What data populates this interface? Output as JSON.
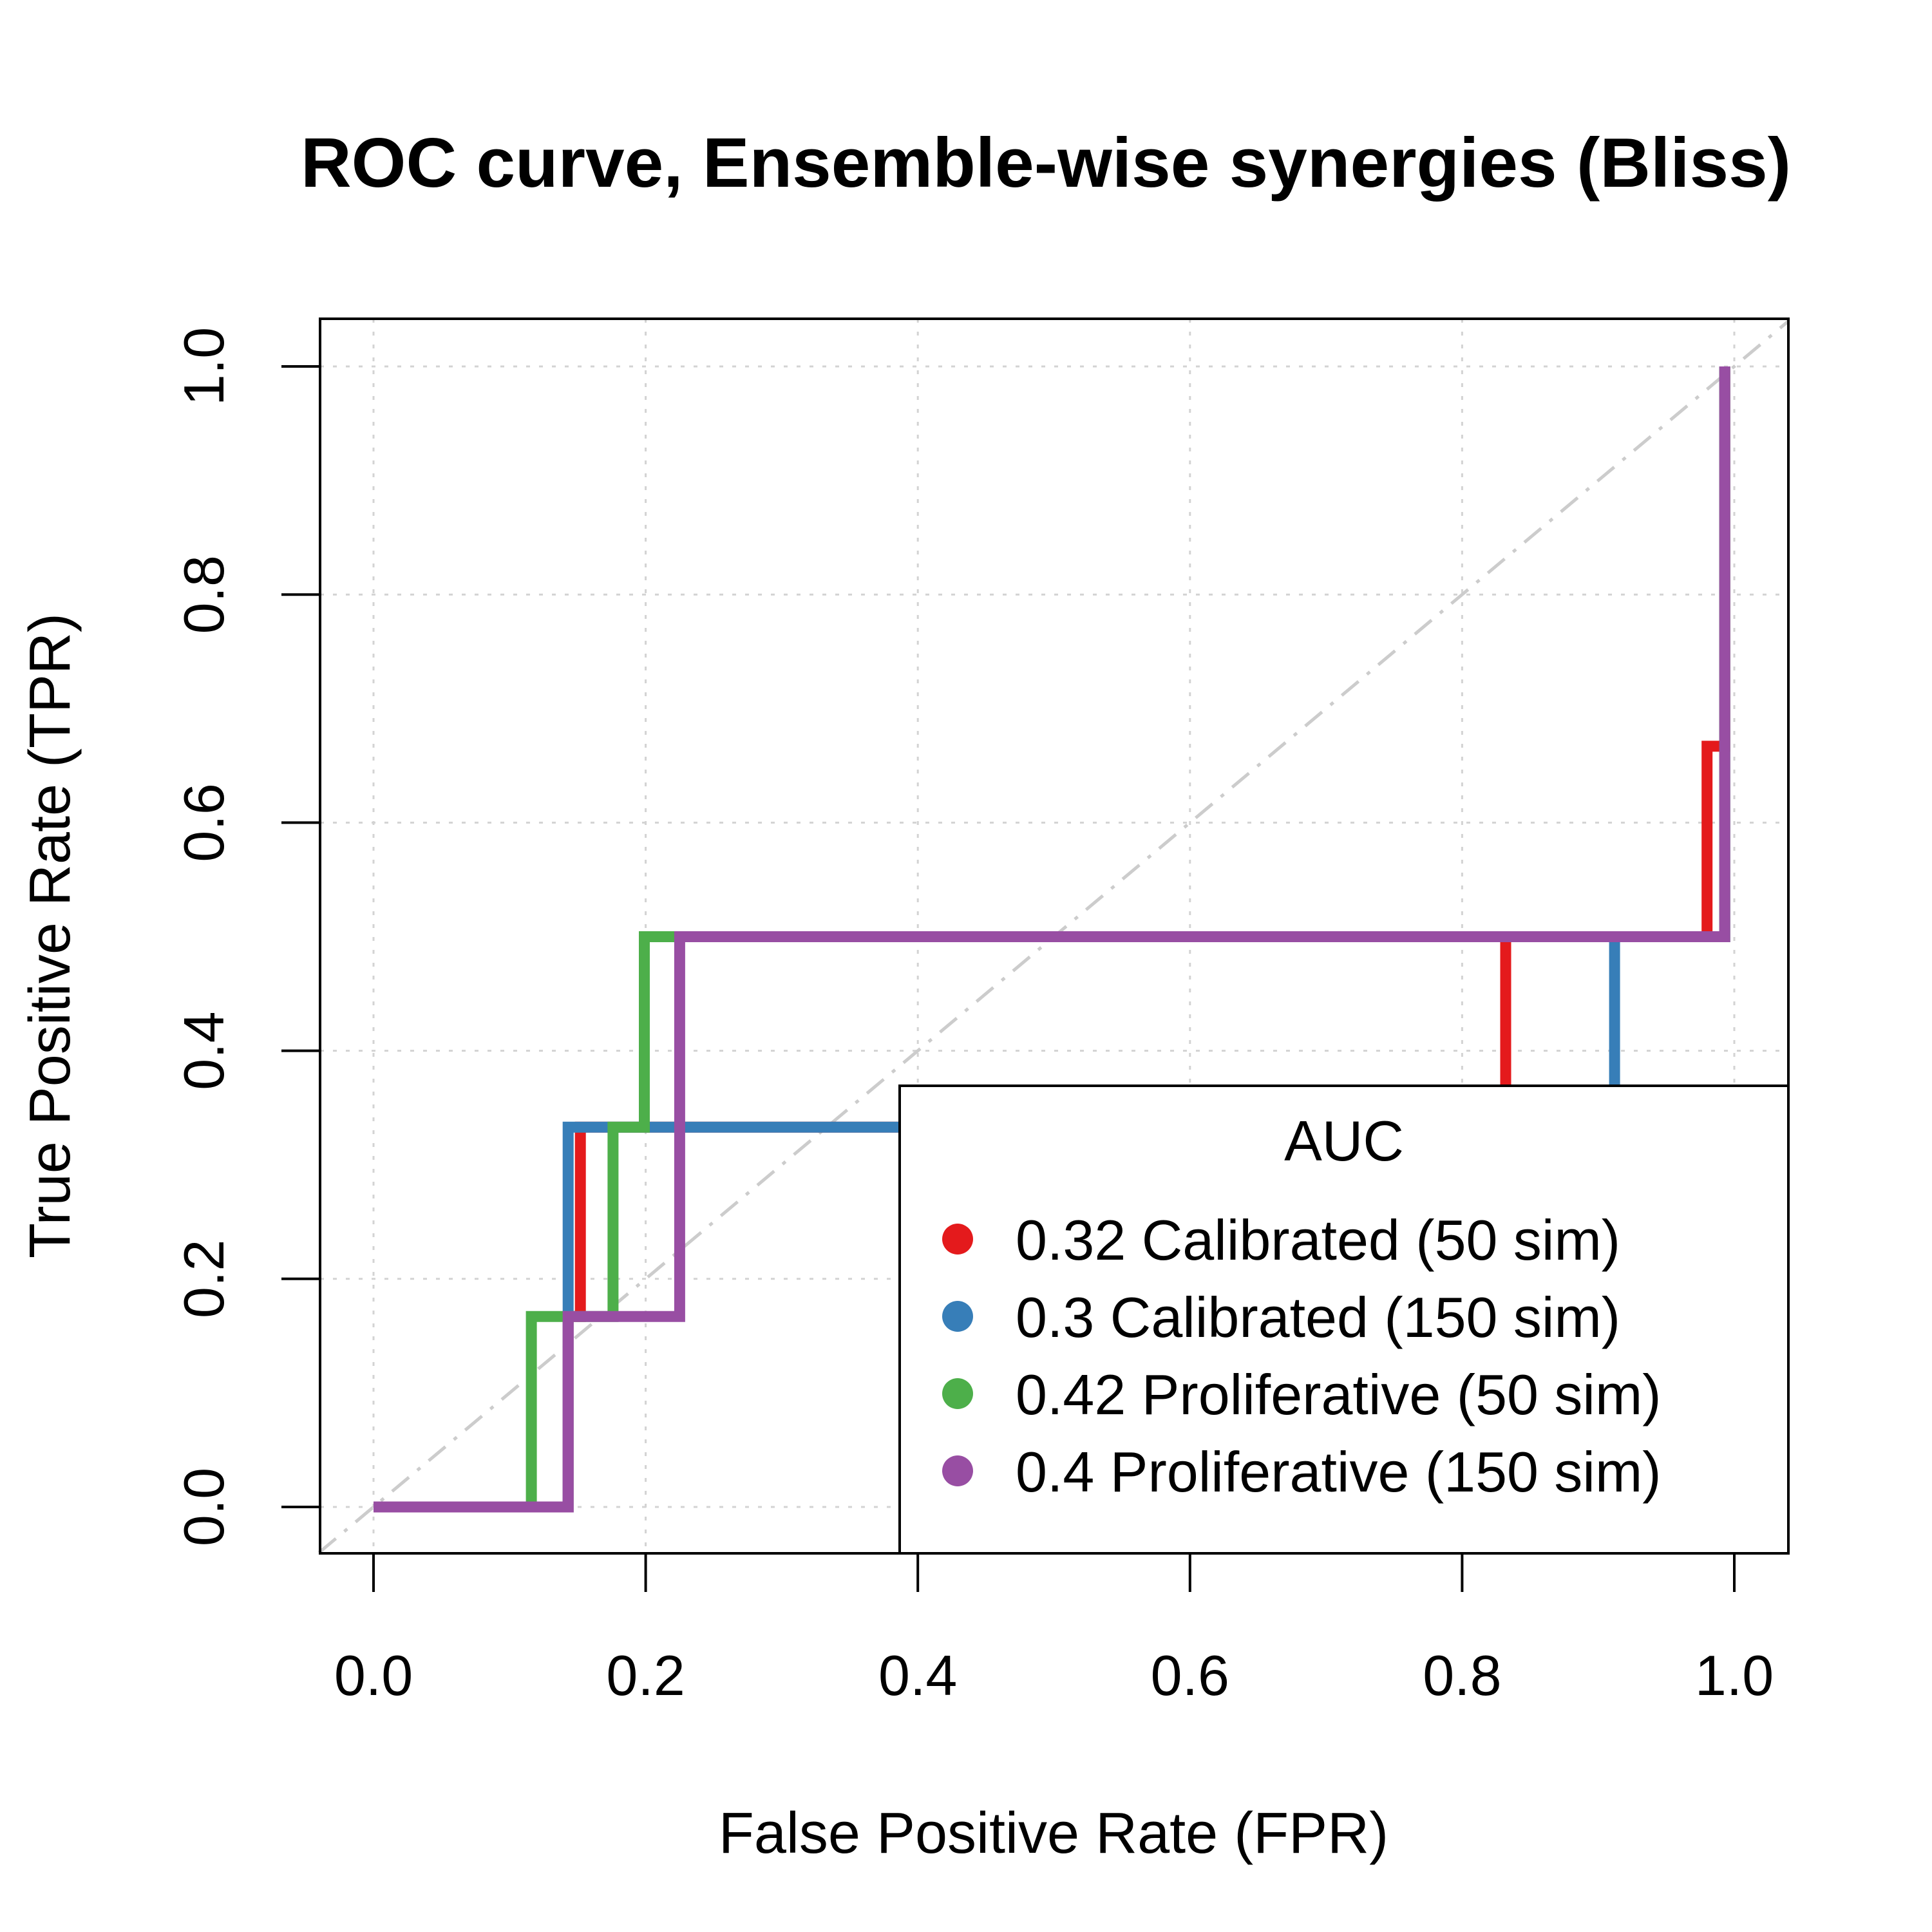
{
  "chart_data": {
    "type": "line",
    "title": "ROC curve, Ensemble-wise synergies (Bliss)",
    "xlabel": "False Positive Rate (FPR)",
    "ylabel": "True Positive Rate (TPR)",
    "xlim": [
      -0.04,
      1.04
    ],
    "ylim": [
      -0.04,
      1.04
    ],
    "xticks": [
      "0.0",
      "0.2",
      "0.4",
      "0.6",
      "0.8",
      "1.0"
    ],
    "yticks": [
      "0.0",
      "0.2",
      "0.4",
      "0.6",
      "0.8",
      "1.0"
    ],
    "grid": true,
    "diagonal_reference": true,
    "legend": {
      "title": "AUC",
      "placement": "bottom-right",
      "entries": [
        "0.32 Calibrated (50 sim)",
        "0.3 Calibrated (150 sim)",
        "0.42 Proliferative (50 sim)",
        "0.4 Proliferative (150 sim)"
      ]
    },
    "series": [
      {
        "color": "#e41a1c",
        "points": [
          [
            0.0,
            0.0
          ],
          [
            0.143,
            0.0
          ],
          [
            0.143,
            0.167
          ],
          [
            0.152,
            0.167
          ],
          [
            0.152,
            0.333
          ],
          [
            0.832,
            0.333
          ],
          [
            0.832,
            0.5
          ],
          [
            0.98,
            0.5
          ],
          [
            0.98,
            0.667
          ],
          [
            0.993,
            0.667
          ],
          [
            0.993,
            1.0
          ]
        ]
      },
      {
        "color": "#377eb8",
        "points": [
          [
            0.0,
            0.0
          ],
          [
            0.143,
            0.0
          ],
          [
            0.143,
            0.333
          ],
          [
            0.912,
            0.333
          ],
          [
            0.912,
            0.5
          ],
          [
            0.993,
            0.5
          ],
          [
            0.993,
            1.0
          ]
        ]
      },
      {
        "color": "#4daf4a",
        "points": [
          [
            0.0,
            0.0
          ],
          [
            0.116,
            0.0
          ],
          [
            0.116,
            0.167
          ],
          [
            0.176,
            0.167
          ],
          [
            0.176,
            0.333
          ],
          [
            0.199,
            0.333
          ],
          [
            0.199,
            0.5
          ],
          [
            0.993,
            0.5
          ],
          [
            0.993,
            1.0
          ]
        ]
      },
      {
        "color": "#984ea3",
        "points": [
          [
            0.0,
            0.0
          ],
          [
            0.143,
            0.0
          ],
          [
            0.143,
            0.167
          ],
          [
            0.225,
            0.167
          ],
          [
            0.225,
            0.5
          ],
          [
            0.993,
            0.5
          ],
          [
            0.993,
            1.0
          ]
        ]
      }
    ]
  }
}
